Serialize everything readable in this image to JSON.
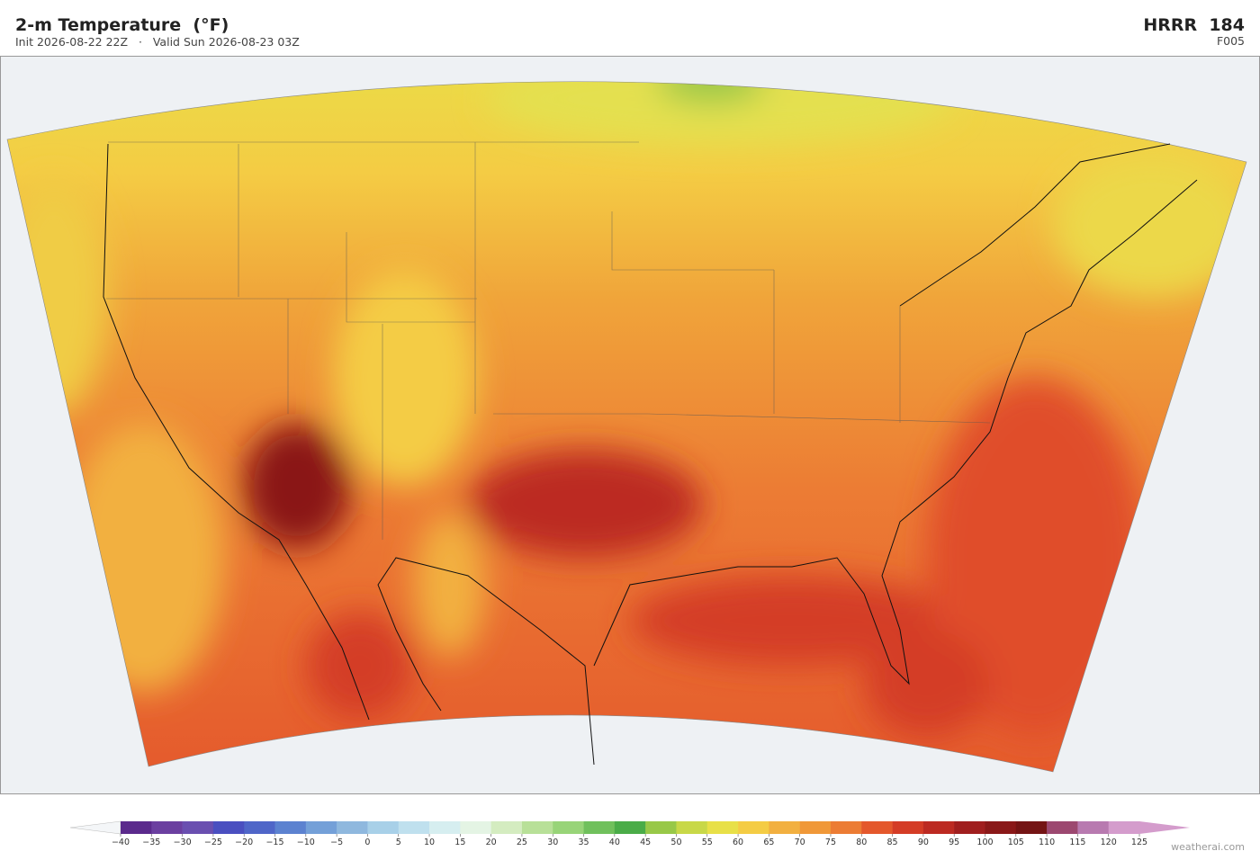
{
  "header": {
    "title": "2-m Temperature  (°F)",
    "subtitle": "Init 2026-08-22 22Z   ·   Valid Sun 2026-08-23 03Z",
    "model": "HRRR  184",
    "forecast_hour": "F005"
  },
  "colorbar": {
    "ticks": [
      {
        "value": -40,
        "label": "−40"
      },
      {
        "value": -35,
        "label": "−35"
      },
      {
        "value": -30,
        "label": "−30"
      },
      {
        "value": -25,
        "label": "−25"
      },
      {
        "value": -20,
        "label": "−20"
      },
      {
        "value": -15,
        "label": "−15"
      },
      {
        "value": -10,
        "label": "−10"
      },
      {
        "value": -5,
        "label": "−5"
      },
      0,
      5,
      10,
      15,
      20,
      25,
      30,
      35,
      40,
      45,
      50,
      55,
      60,
      65,
      70,
      75,
      80,
      85,
      90,
      95,
      100,
      105,
      110,
      115,
      120,
      125
    ],
    "colors": [
      "#5b2a8c",
      "#6b3fa0",
      "#6a4fb0",
      "#4a4fc0",
      "#4f66c8",
      "#5c82d0",
      "#74a0d8",
      "#8fb8de",
      "#a8d0e8",
      "#bfe0ee",
      "#d6eef0",
      "#e4f4e4",
      "#d4ecc0",
      "#b8e098",
      "#98d478",
      "#70c05c",
      "#4aac48",
      "#98c848",
      "#c8d848",
      "#e8e048",
      "#f4cc44",
      "#f2b040",
      "#f09838",
      "#ec7c34",
      "#e4582c",
      "#d43c26",
      "#bc2a22",
      "#a01e1e",
      "#8a1818",
      "#741414",
      "#9c4870",
      "#b87ab0",
      "#d49ccc"
    ],
    "under_color": "#f4f6f8",
    "over_color": "#d49ccc"
  },
  "footer": {
    "watermark": "weatherai.com"
  }
}
